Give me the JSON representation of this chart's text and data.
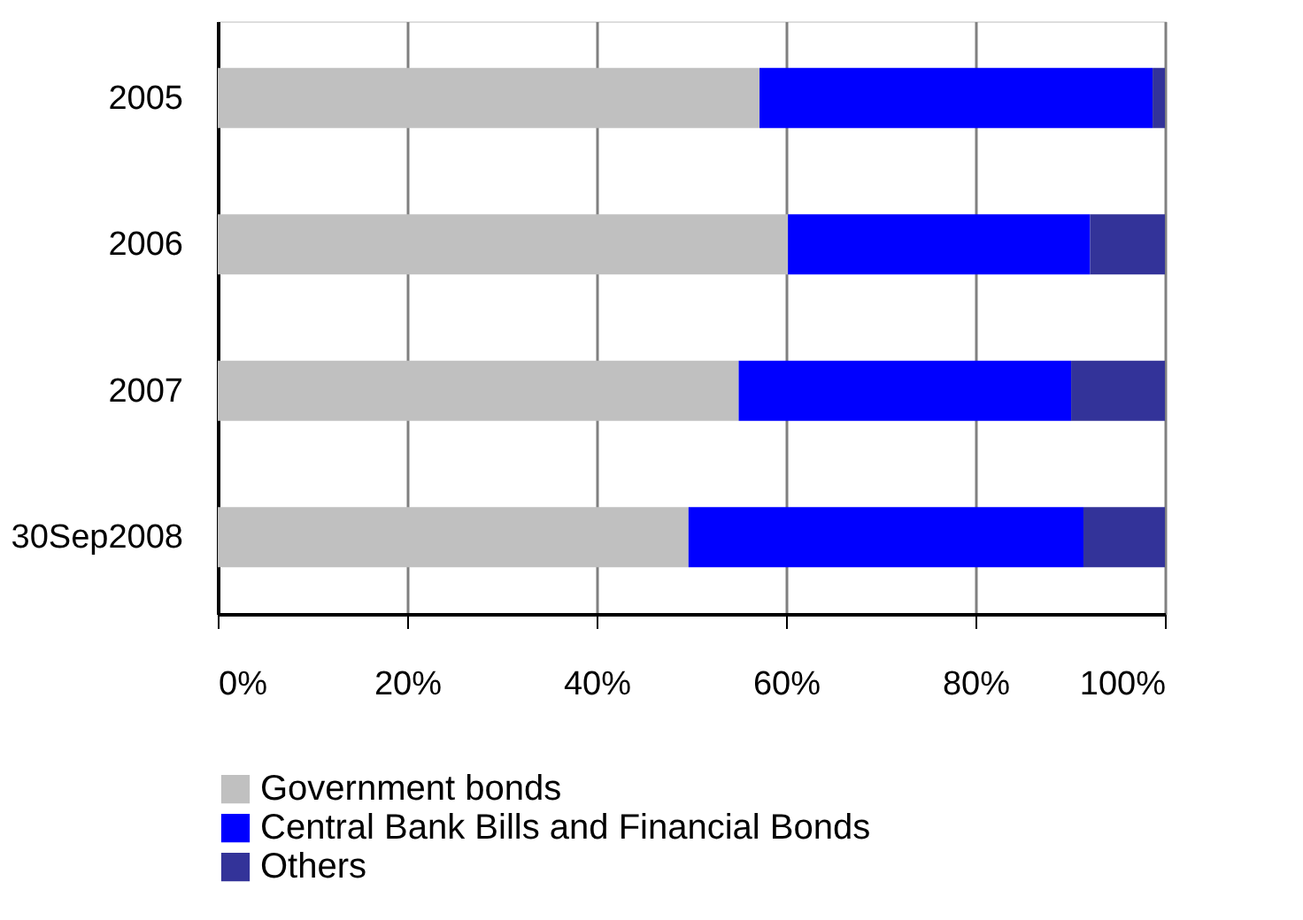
{
  "chart_data": {
    "type": "bar",
    "orientation": "horizontal",
    "stacked": true,
    "categories": [
      "2005",
      "2006",
      "2007",
      "30Sep2008"
    ],
    "series": [
      {
        "name": "Government bonds",
        "color": "#c0c0c0",
        "values": [
          57.2,
          60.2,
          55.0,
          49.7
        ]
      },
      {
        "name": "Central Bank Bills and Financial Bonds",
        "color": "#0000ff",
        "values": [
          41.5,
          31.9,
          35.1,
          41.7
        ]
      },
      {
        "name": "Others",
        "color": "#333399",
        "values": [
          1.3,
          7.9,
          9.9,
          8.6
        ]
      }
    ],
    "xlim": [
      0,
      100
    ],
    "xticks": [
      {
        "value": 0,
        "label": "0%"
      },
      {
        "value": 20,
        "label": "20%"
      },
      {
        "value": 40,
        "label": "40%"
      },
      {
        "value": 60,
        "label": "60%"
      },
      {
        "value": 80,
        "label": "80%"
      },
      {
        "value": 100,
        "label": "100%"
      }
    ],
    "grid": "x",
    "legend": "bottom"
  }
}
